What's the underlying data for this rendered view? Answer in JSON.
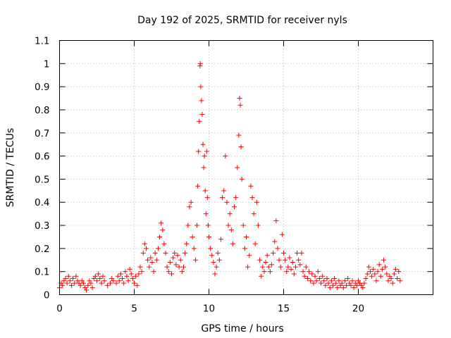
{
  "chart_data": {
    "type": "scatter",
    "title": "Day 192 of 2025, SRMTID for receiver nyls",
    "xlabel": "GPS time / hours",
    "ylabel": "SRMTID / TECUs",
    "xlim": [
      0,
      25
    ],
    "ylim": [
      0,
      1.1
    ],
    "xticks": [
      0,
      5,
      10,
      15,
      20
    ],
    "xtick_labels": [
      "0",
      "5",
      "10",
      "15",
      "20"
    ],
    "yticks": [
      0,
      0.1,
      0.2,
      0.3,
      0.4,
      0.5,
      0.6,
      0.7,
      0.8,
      0.9,
      1,
      1.1
    ],
    "ytick_labels": [
      "0",
      "0.1",
      "0.2",
      "0.3",
      "0.4",
      "0.5",
      "0.6",
      "0.7",
      "0.8",
      "0.9",
      "1",
      "1.1"
    ],
    "grid": true,
    "marker": "+",
    "series": [
      {
        "name": "SRMTID",
        "color": "#ff0000",
        "points": [
          [
            0.0,
            0.03
          ],
          [
            0.1,
            0.05
          ],
          [
            0.2,
            0.04
          ],
          [
            0.3,
            0.06
          ],
          [
            0.4,
            0.07
          ],
          [
            0.5,
            0.05
          ],
          [
            0.6,
            0.08
          ],
          [
            0.7,
            0.06
          ],
          [
            0.8,
            0.04
          ],
          [
            0.9,
            0.07
          ],
          [
            1.0,
            0.05
          ],
          [
            1.1,
            0.08
          ],
          [
            1.2,
            0.06
          ],
          [
            1.3,
            0.05
          ],
          [
            1.4,
            0.04
          ],
          [
            1.5,
            0.06
          ],
          [
            1.6,
            0.05
          ],
          [
            1.7,
            0.03
          ],
          [
            1.8,
            0.02
          ],
          [
            1.9,
            0.04
          ],
          [
            2.0,
            0.06
          ],
          [
            2.1,
            0.05
          ],
          [
            2.2,
            0.03
          ],
          [
            2.3,
            0.07
          ],
          [
            2.4,
            0.08
          ],
          [
            2.5,
            0.06
          ],
          [
            2.6,
            0.09
          ],
          [
            2.7,
            0.07
          ],
          [
            2.8,
            0.05
          ],
          [
            2.9,
            0.08
          ],
          [
            3.0,
            0.06
          ],
          [
            3.2,
            0.04
          ],
          [
            3.4,
            0.05
          ],
          [
            3.5,
            0.07
          ],
          [
            3.6,
            0.06
          ],
          [
            3.8,
            0.05
          ],
          [
            3.9,
            0.08
          ],
          [
            4.0,
            0.06
          ],
          [
            4.1,
            0.09
          ],
          [
            4.2,
            0.07
          ],
          [
            4.3,
            0.05
          ],
          [
            4.4,
            0.1
          ],
          [
            4.5,
            0.08
          ],
          [
            4.6,
            0.06
          ],
          [
            4.7,
            0.11
          ],
          [
            4.8,
            0.09
          ],
          [
            4.9,
            0.07
          ],
          [
            5.0,
            0.05
          ],
          [
            5.1,
            0.08
          ],
          [
            5.2,
            0.04
          ],
          [
            5.3,
            0.09
          ],
          [
            5.4,
            0.12
          ],
          [
            5.5,
            0.1
          ],
          [
            5.6,
            0.18
          ],
          [
            5.7,
            0.22
          ],
          [
            5.8,
            0.2
          ],
          [
            5.9,
            0.15
          ],
          [
            6.0,
            0.12
          ],
          [
            6.1,
            0.16
          ],
          [
            6.2,
            0.14
          ],
          [
            6.3,
            0.1
          ],
          [
            6.4,
            0.18
          ],
          [
            6.5,
            0.15
          ],
          [
            6.6,
            0.2
          ],
          [
            6.7,
            0.25
          ],
          [
            6.8,
            0.31
          ],
          [
            6.9,
            0.28
          ],
          [
            7.0,
            0.22
          ],
          [
            7.1,
            0.18
          ],
          [
            7.2,
            0.12
          ],
          [
            7.3,
            0.1
          ],
          [
            7.4,
            0.14
          ],
          [
            7.5,
            0.09
          ],
          [
            7.6,
            0.16
          ],
          [
            7.7,
            0.18
          ],
          [
            7.8,
            0.13
          ],
          [
            7.9,
            0.17
          ],
          [
            8.0,
            0.12
          ],
          [
            8.1,
            0.15
          ],
          [
            8.2,
            0.1
          ],
          [
            8.3,
            0.12
          ],
          [
            8.4,
            0.18
          ],
          [
            8.5,
            0.22
          ],
          [
            8.6,
            0.3
          ],
          [
            8.7,
            0.38
          ],
          [
            8.8,
            0.4
          ],
          [
            8.9,
            0.25
          ],
          [
            9.0,
            0.2
          ],
          [
            9.1,
            0.15
          ],
          [
            9.2,
            0.3
          ],
          [
            9.25,
            0.47
          ],
          [
            9.3,
            0.62
          ],
          [
            9.35,
            0.75
          ],
          [
            9.4,
            0.99
          ],
          [
            9.42,
            1.0
          ],
          [
            9.45,
            0.9
          ],
          [
            9.5,
            0.84
          ],
          [
            9.55,
            0.78
          ],
          [
            9.6,
            0.65
          ],
          [
            9.65,
            0.55
          ],
          [
            9.7,
            0.6
          ],
          [
            9.75,
            0.45
          ],
          [
            9.8,
            0.35
          ],
          [
            9.85,
            0.62
          ],
          [
            9.9,
            0.42
          ],
          [
            9.95,
            0.3
          ],
          [
            10.0,
            0.25
          ],
          [
            10.1,
            0.2
          ],
          [
            10.2,
            0.17
          ],
          [
            10.3,
            0.14
          ],
          [
            10.4,
            0.09
          ],
          [
            10.5,
            0.12
          ],
          [
            10.6,
            0.18
          ],
          [
            10.7,
            0.15
          ],
          [
            10.8,
            0.24
          ],
          [
            10.9,
            0.42
          ],
          [
            11.0,
            0.45
          ],
          [
            11.1,
            0.6
          ],
          [
            11.2,
            0.4
          ],
          [
            11.3,
            0.3
          ],
          [
            11.4,
            0.35
          ],
          [
            11.5,
            0.28
          ],
          [
            11.6,
            0.22
          ],
          [
            11.7,
            0.38
          ],
          [
            11.8,
            0.42
          ],
          [
            11.9,
            0.55
          ],
          [
            12.0,
            0.69
          ],
          [
            12.05,
            0.85
          ],
          [
            12.1,
            0.82
          ],
          [
            12.15,
            0.64
          ],
          [
            12.2,
            0.5
          ],
          [
            12.3,
            0.3
          ],
          [
            12.4,
            0.2
          ],
          [
            12.5,
            0.25
          ],
          [
            12.6,
            0.12
          ],
          [
            12.7,
            0.17
          ],
          [
            12.8,
            0.47
          ],
          [
            12.9,
            0.42
          ],
          [
            13.0,
            0.35
          ],
          [
            13.1,
            0.22
          ],
          [
            13.2,
            0.4
          ],
          [
            13.3,
            0.3
          ],
          [
            13.4,
            0.15
          ],
          [
            13.5,
            0.08
          ],
          [
            13.6,
            0.12
          ],
          [
            13.7,
            0.1
          ],
          [
            13.8,
            0.14
          ],
          [
            13.9,
            0.17
          ],
          [
            14.0,
            0.12
          ],
          [
            14.1,
            0.1
          ],
          [
            14.2,
            0.13
          ],
          [
            14.3,
            0.18
          ],
          [
            14.4,
            0.23
          ],
          [
            14.5,
            0.32
          ],
          [
            14.6,
            0.2
          ],
          [
            14.7,
            0.15
          ],
          [
            14.8,
            0.12
          ],
          [
            14.9,
            0.26
          ],
          [
            15.0,
            0.18
          ],
          [
            15.1,
            0.15
          ],
          [
            15.2,
            0.1
          ],
          [
            15.3,
            0.12
          ],
          [
            15.4,
            0.16
          ],
          [
            15.5,
            0.11
          ],
          [
            15.6,
            0.14
          ],
          [
            15.7,
            0.09
          ],
          [
            15.8,
            0.12
          ],
          [
            15.9,
            0.18
          ],
          [
            16.0,
            0.15
          ],
          [
            16.1,
            0.13
          ],
          [
            16.2,
            0.18
          ],
          [
            16.3,
            0.1
          ],
          [
            16.4,
            0.08
          ],
          [
            16.5,
            0.12
          ],
          [
            16.6,
            0.07
          ],
          [
            16.7,
            0.1
          ],
          [
            16.8,
            0.06
          ],
          [
            16.9,
            0.09
          ],
          [
            17.0,
            0.05
          ],
          [
            17.1,
            0.08
          ],
          [
            17.2,
            0.06
          ],
          [
            17.3,
            0.1
          ],
          [
            17.4,
            0.07
          ],
          [
            17.5,
            0.05
          ],
          [
            17.6,
            0.08
          ],
          [
            17.7,
            0.06
          ],
          [
            17.8,
            0.04
          ],
          [
            17.9,
            0.07
          ],
          [
            18.0,
            0.05
          ],
          [
            18.1,
            0.03
          ],
          [
            18.2,
            0.06
          ],
          [
            18.3,
            0.04
          ],
          [
            18.4,
            0.07
          ],
          [
            18.5,
            0.05
          ],
          [
            18.6,
            0.03
          ],
          [
            18.7,
            0.06
          ],
          [
            18.8,
            0.04
          ],
          [
            18.9,
            0.05
          ],
          [
            19.0,
            0.03
          ],
          [
            19.1,
            0.06
          ],
          [
            19.2,
            0.04
          ],
          [
            19.3,
            0.07
          ],
          [
            19.4,
            0.05
          ],
          [
            19.5,
            0.04
          ],
          [
            19.6,
            0.06
          ],
          [
            19.7,
            0.03
          ],
          [
            19.8,
            0.05
          ],
          [
            19.9,
            0.04
          ],
          [
            20.0,
            0.06
          ],
          [
            20.1,
            0.05
          ],
          [
            20.2,
            0.04
          ],
          [
            20.3,
            0.03
          ],
          [
            20.4,
            0.05
          ],
          [
            20.5,
            0.07
          ],
          [
            20.6,
            0.09
          ],
          [
            20.7,
            0.12
          ],
          [
            20.8,
            0.1
          ],
          [
            20.9,
            0.08
          ],
          [
            21.0,
            0.11
          ],
          [
            21.1,
            0.09
          ],
          [
            21.2,
            0.06
          ],
          [
            21.3,
            0.1
          ],
          [
            21.4,
            0.13
          ],
          [
            21.5,
            0.08
          ],
          [
            21.6,
            0.11
          ],
          [
            21.7,
            0.15
          ],
          [
            21.8,
            0.12
          ],
          [
            21.9,
            0.09
          ],
          [
            22.0,
            0.06
          ],
          [
            22.1,
            0.08
          ],
          [
            22.2,
            0.07
          ],
          [
            22.3,
            0.05
          ],
          [
            22.4,
            0.09
          ],
          [
            22.5,
            0.11
          ],
          [
            22.6,
            0.07
          ],
          [
            22.7,
            0.1
          ],
          [
            22.8,
            0.06
          ]
        ]
      }
    ]
  }
}
